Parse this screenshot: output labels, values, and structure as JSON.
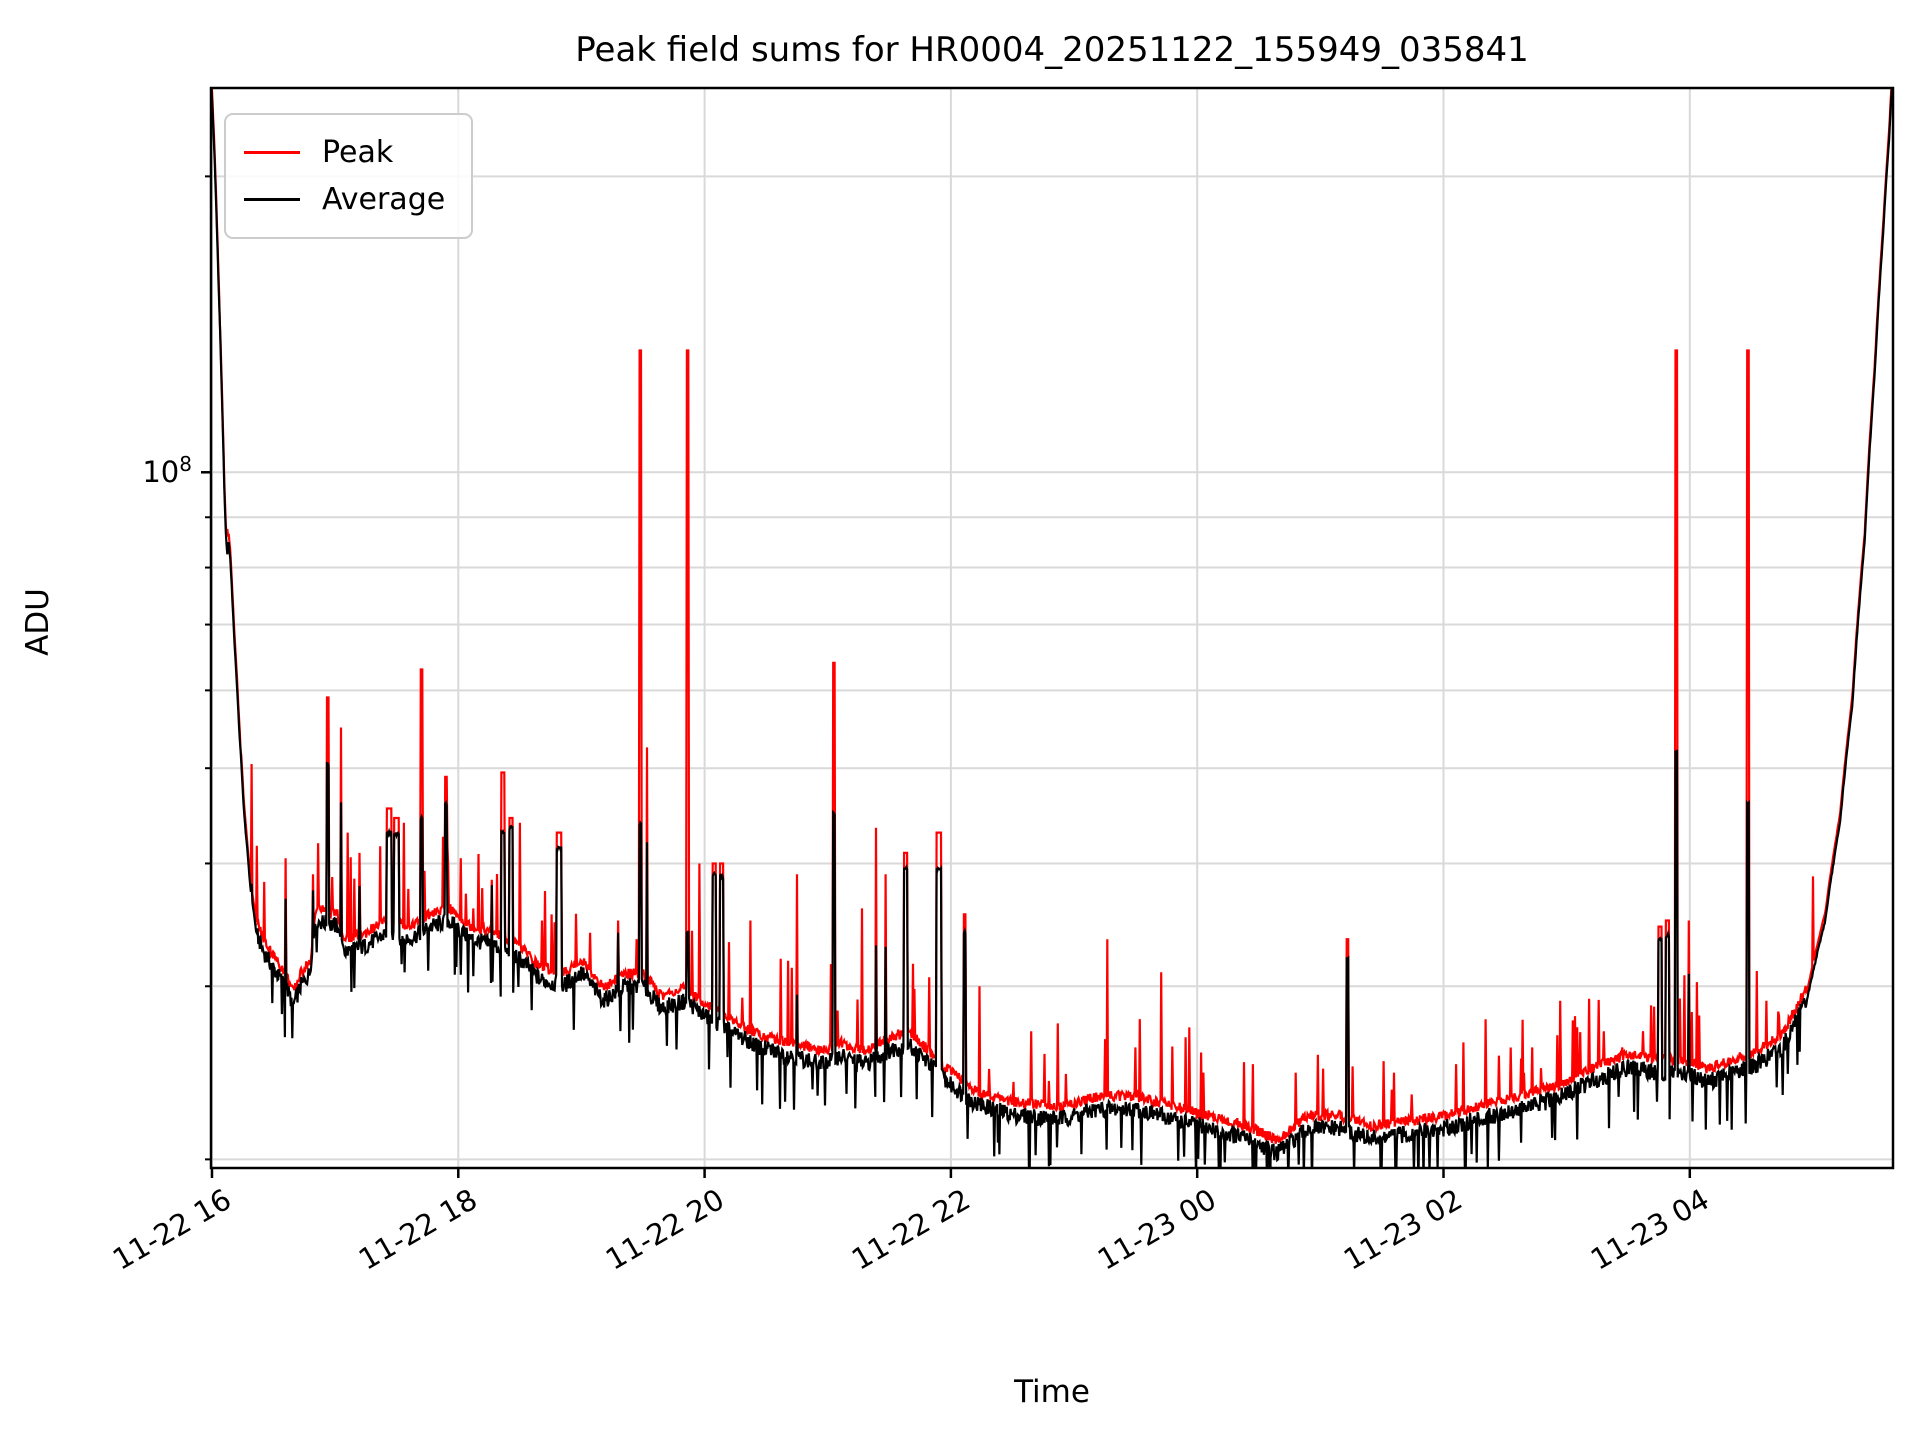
{
  "figure": {
    "title": "Peak field sums for HR0004_20251122_155949_035841",
    "xlabel": "Time",
    "ylabel": "ADU"
  },
  "legend": {
    "items": [
      {
        "label": "Peak",
        "color": "#ff0000"
      },
      {
        "label": "Average",
        "color": "#000000"
      }
    ]
  },
  "colors": {
    "peak_line": "#ff0000",
    "average_line": "#000000",
    "grid": "#d9d9d9",
    "spine": "#000000",
    "background": "#ffffff"
  },
  "chart_data": {
    "type": "line",
    "title": "Peak field sums for HR0004_20251122_155949_035841",
    "xlabel": "Time",
    "ylabel": "ADU",
    "y_scale": "log",
    "grid": "both-on",
    "legend_position": "upper-left",
    "ylim": [
      19600000,
      246000000
    ],
    "x_unit": "hours since 11-22 16:00",
    "x_range": [
      -0.008,
      13.65
    ],
    "x_ticks": [
      {
        "t": 0,
        "label": "11-22 16"
      },
      {
        "t": 2,
        "label": "11-22 18"
      },
      {
        "t": 4,
        "label": "11-22 20"
      },
      {
        "t": 6,
        "label": "11-22 22"
      },
      {
        "t": 8,
        "label": "11-23 00"
      },
      {
        "t": 10,
        "label": "11-23 02"
      },
      {
        "t": 12,
        "label": "11-23 04"
      }
    ],
    "y_ticks": {
      "major": [
        {
          "value": 100000000,
          "base": "10",
          "exp": "8"
        }
      ],
      "minor_values": [
        20000000,
        30000000,
        40000000,
        50000000,
        60000000,
        70000000,
        80000000,
        90000000,
        200000000
      ]
    },
    "series": [
      {
        "name": "Peak",
        "color": "#ff0000",
        "role": "peak"
      },
      {
        "name": "Average",
        "color": "#000000",
        "role": "average"
      }
    ],
    "value_unit_e7": "values below are ADU x 1e7",
    "average_baseline": [
      [
        -0.02,
        27
      ],
      [
        0.02,
        21
      ],
      [
        0.05,
        16
      ],
      [
        0.08,
        12
      ],
      [
        0.1,
        9.6
      ],
      [
        0.115,
        8.45
      ],
      [
        0.145,
        8.3
      ],
      [
        0.18,
        6.8
      ],
      [
        0.22,
        5.5
      ],
      [
        0.26,
        4.5
      ],
      [
        0.31,
        3.8
      ],
      [
        0.36,
        3.4
      ],
      [
        0.42,
        3.25
      ],
      [
        0.52,
        3.1
      ],
      [
        0.6,
        3.0
      ],
      [
        0.66,
        2.87
      ],
      [
        0.72,
        3.0
      ],
      [
        0.8,
        3.1
      ],
      [
        0.84,
        3.5
      ],
      [
        1.02,
        3.45
      ],
      [
        1.08,
        3.25
      ],
      [
        1.25,
        3.3
      ],
      [
        1.42,
        3.4
      ],
      [
        1.6,
        3.35
      ],
      [
        1.78,
        3.45
      ],
      [
        1.92,
        3.5
      ],
      [
        2.1,
        3.35
      ],
      [
        2.3,
        3.3
      ],
      [
        2.5,
        3.2
      ],
      [
        2.66,
        3.05
      ],
      [
        2.85,
        3.0
      ],
      [
        3.0,
        3.1
      ],
      [
        3.18,
        2.9
      ],
      [
        3.35,
        3.0
      ],
      [
        3.5,
        3.0
      ],
      [
        3.65,
        2.85
      ],
      [
        3.85,
        2.9
      ],
      [
        4.0,
        2.8
      ],
      [
        4.2,
        2.7
      ],
      [
        4.45,
        2.6
      ],
      [
        4.7,
        2.55
      ],
      [
        4.95,
        2.5
      ],
      [
        5.1,
        2.55
      ],
      [
        5.3,
        2.5
      ],
      [
        5.5,
        2.58
      ],
      [
        5.65,
        2.62
      ],
      [
        5.8,
        2.52
      ],
      [
        6.0,
        2.38
      ],
      [
        6.2,
        2.28
      ],
      [
        6.5,
        2.22
      ],
      [
        6.9,
        2.2
      ],
      [
        7.2,
        2.25
      ],
      [
        7.5,
        2.25
      ],
      [
        7.8,
        2.2
      ],
      [
        8.1,
        2.15
      ],
      [
        8.4,
        2.1
      ],
      [
        8.65,
        2.03
      ],
      [
        8.9,
        2.15
      ],
      [
        9.15,
        2.15
      ],
      [
        9.4,
        2.1
      ],
      [
        9.7,
        2.12
      ],
      [
        10.0,
        2.15
      ],
      [
        10.3,
        2.2
      ],
      [
        10.6,
        2.25
      ],
      [
        10.9,
        2.3
      ],
      [
        11.2,
        2.4
      ],
      [
        11.5,
        2.48
      ],
      [
        11.75,
        2.45
      ],
      [
        11.95,
        2.45
      ],
      [
        12.15,
        2.4
      ],
      [
        12.35,
        2.45
      ],
      [
        12.55,
        2.5
      ],
      [
        12.75,
        2.6
      ],
      [
        12.95,
        2.9
      ],
      [
        13.1,
        3.5
      ],
      [
        13.22,
        4.4
      ],
      [
        13.32,
        5.8
      ],
      [
        13.42,
        8.5
      ],
      [
        13.5,
        12.5
      ],
      [
        13.57,
        17.5
      ],
      [
        13.62,
        22
      ],
      [
        13.66,
        27
      ]
    ],
    "spikes": [
      [
        0.065,
        8.8,
        0,
        0
      ],
      [
        0.23,
        5.05,
        0,
        0
      ],
      [
        0.32,
        5.05,
        3.8,
        0
      ],
      [
        0.6,
        4.05,
        3.7,
        0
      ],
      [
        0.82,
        3.9,
        3.75,
        0
      ],
      [
        0.94,
        5.9,
        5.05,
        0.012
      ],
      [
        1.05,
        5.5,
        4.6,
        0
      ],
      [
        1.1,
        4.3,
        0,
        0
      ],
      [
        1.2,
        4.1,
        3.8,
        0
      ],
      [
        1.44,
        4.55,
        4.3,
        0.03
      ],
      [
        1.5,
        4.45,
        4.28,
        0.03
      ],
      [
        1.56,
        4.4,
        0,
        0
      ],
      [
        1.7,
        6.3,
        4.45,
        0.012
      ],
      [
        1.9,
        4.9,
        4.6,
        0.014
      ],
      [
        2.02,
        4.05,
        0,
        0
      ],
      [
        2.12,
        3.6,
        0,
        0
      ],
      [
        2.27,
        3.85,
        3.8,
        0
      ],
      [
        2.36,
        4.95,
        4.3,
        0.02
      ],
      [
        2.43,
        4.45,
        4.35,
        0.025
      ],
      [
        2.5,
        4.4,
        0,
        0
      ],
      [
        2.68,
        3.5,
        0,
        0
      ],
      [
        2.76,
        3.55,
        0,
        0
      ],
      [
        2.82,
        4.3,
        4.15,
        0.03
      ],
      [
        3.07,
        3.4,
        0,
        0
      ],
      [
        3.3,
        3.5,
        3.4,
        0
      ],
      [
        3.48,
        13.3,
        4.4,
        0.01
      ],
      [
        3.53,
        5.25,
        4.2,
        0
      ],
      [
        3.86,
        13.3,
        3.4,
        0.01
      ],
      [
        3.96,
        4.0,
        0,
        0
      ],
      [
        4.08,
        4.0,
        3.9,
        0.022
      ],
      [
        4.14,
        4.0,
        3.88,
        0.022
      ],
      [
        4.37,
        3.5,
        0,
        0
      ],
      [
        4.62,
        3.2,
        0,
        0
      ],
      [
        4.75,
        3.9,
        2.95,
        0
      ],
      [
        5.05,
        6.4,
        4.5,
        0.012
      ],
      [
        5.28,
        3.6,
        0,
        0
      ],
      [
        5.39,
        4.35,
        3.3,
        0
      ],
      [
        5.47,
        3.9,
        3.3,
        0
      ],
      [
        5.63,
        4.1,
        3.95,
        0.02
      ],
      [
        5.9,
        4.3,
        3.95,
        0.035
      ],
      [
        6.11,
        3.55,
        3.4,
        0.015
      ],
      [
        6.23,
        3.0,
        0,
        0
      ],
      [
        6.65,
        2.7,
        0,
        0
      ],
      [
        6.87,
        2.75,
        0,
        0
      ],
      [
        7.27,
        3.35,
        0,
        0
      ],
      [
        7.5,
        2.6,
        0,
        0
      ],
      [
        7.71,
        3.1,
        0,
        0
      ],
      [
        8.05,
        2.45,
        0,
        0
      ],
      [
        8.45,
        2.5,
        0,
        0
      ],
      [
        8.8,
        2.45,
        0,
        0
      ],
      [
        9.22,
        3.35,
        3.2,
        0.012
      ],
      [
        9.6,
        2.45,
        0,
        0
      ],
      [
        10.1,
        2.5,
        0,
        0
      ],
      [
        10.45,
        2.55,
        0,
        0
      ],
      [
        10.72,
        2.6,
        0,
        0
      ],
      [
        10.95,
        2.9,
        0,
        0
      ],
      [
        11.1,
        2.5,
        0,
        0
      ],
      [
        11.3,
        2.7,
        0,
        0
      ],
      [
        11.45,
        2.6,
        0,
        0
      ],
      [
        11.76,
        3.45,
        3.35,
        0.02
      ],
      [
        11.82,
        3.5,
        3.38,
        0.02
      ],
      [
        11.89,
        13.3,
        5.2,
        0.008
      ],
      [
        11.99,
        3.5,
        3.1,
        0
      ],
      [
        12.47,
        13.3,
        4.6,
        0.008
      ],
      [
        12.62,
        2.9,
        0,
        0
      ]
    ],
    "noise": {
      "avg_jitter": 0.02,
      "dip_prob": 0.055,
      "dip_depth": [
        0.88,
        0.93
      ],
      "peak_offset": [
        1.018,
        0.025
      ],
      "red_tick_prob": 0.035,
      "red_tick_gain": [
        1.08,
        0.18
      ]
    }
  }
}
